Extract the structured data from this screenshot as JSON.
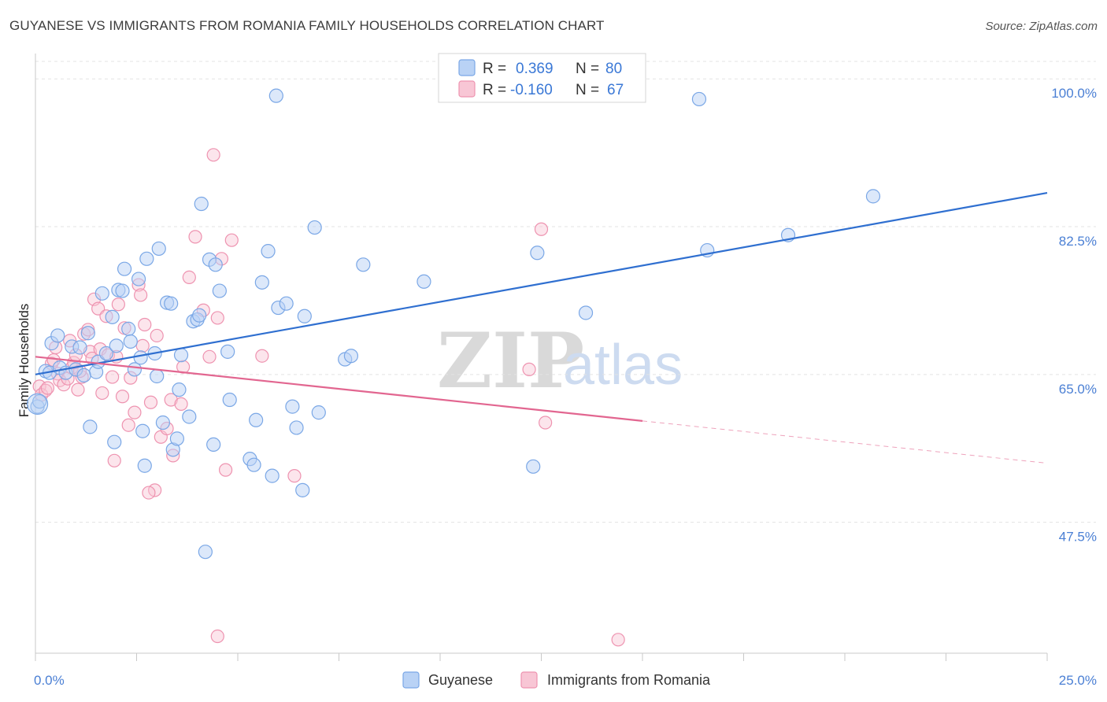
{
  "title": "GUYANESE VS IMMIGRANTS FROM ROMANIA FAMILY HOUSEHOLDS CORRELATION CHART",
  "source": "Source: ZipAtlas.com",
  "watermark": {
    "zip": "ZIP",
    "atlas": "atlas"
  },
  "legend": {
    "rows": [
      {
        "r_label": "R =",
        "r_value": "0.369",
        "n_label": "N =",
        "n_value": "80"
      },
      {
        "r_label": "R =",
        "r_value": "-0.160",
        "n_label": "N =",
        "n_value": "67"
      }
    ]
  },
  "bottom_legend": [
    "Guyanese",
    "Immigrants from Romania"
  ],
  "colors": {
    "blue_fill": "#b9d2f5",
    "blue_stroke": "#7aa7e6",
    "blue_line": "#2f6fd0",
    "pink_fill": "#f8c6d5",
    "pink_stroke": "#ee93b0",
    "pink_line": "#e26690",
    "grid": "#e3e3e3",
    "axis": "#c9c9c9",
    "tick_text": "#4a7fd4"
  },
  "chart_data": {
    "type": "scatter",
    "title": "GUYANESE VS IMMIGRANTS FROM ROMANIA FAMILY HOUSEHOLDS CORRELATION CHART",
    "xlabel": "",
    "ylabel": "Family Households",
    "xlim": [
      0,
      25
    ],
    "ylim": [
      32.0,
      103.0
    ],
    "x_tick_labels": [
      "0.0%",
      "25.0%"
    ],
    "y_ticks": [
      47.5,
      65.0,
      82.5,
      100.0
    ],
    "y_tick_labels": [
      "47.5%",
      "65.0%",
      "82.5%",
      "100.0%"
    ],
    "grid": true,
    "legend_position": "top-center",
    "series": [
      {
        "name": "Guyanese",
        "r": 0.369,
        "n": 80,
        "trend": {
          "x0": 0.0,
          "y0": 65.0,
          "x1": 25.0,
          "y1": 86.5
        },
        "points": [
          [
            0.05,
            61.2
          ],
          [
            0.1,
            61.8
          ],
          [
            0.25,
            65.4
          ],
          [
            0.35,
            65.2
          ],
          [
            0.4,
            68.7
          ],
          [
            0.55,
            69.6
          ],
          [
            0.6,
            65.8
          ],
          [
            0.75,
            65.2
          ],
          [
            0.9,
            68.3
          ],
          [
            1.0,
            65.6
          ],
          [
            1.1,
            68.2
          ],
          [
            1.3,
            69.9
          ],
          [
            1.35,
            58.8
          ],
          [
            1.5,
            65.3
          ],
          [
            1.55,
            66.5
          ],
          [
            1.65,
            74.6
          ],
          [
            1.75,
            67.5
          ],
          [
            1.9,
            71.8
          ],
          [
            1.95,
            57.0
          ],
          [
            2.05,
            75.0
          ],
          [
            2.15,
            74.9
          ],
          [
            2.2,
            77.5
          ],
          [
            2.3,
            70.4
          ],
          [
            2.35,
            68.9
          ],
          [
            2.45,
            65.6
          ],
          [
            2.55,
            76.3
          ],
          [
            2.6,
            67.0
          ],
          [
            2.65,
            58.3
          ],
          [
            2.7,
            54.2
          ],
          [
            2.75,
            78.7
          ],
          [
            2.95,
            67.5
          ],
          [
            3.0,
            64.8
          ],
          [
            3.05,
            79.9
          ],
          [
            3.15,
            59.3
          ],
          [
            3.25,
            73.5
          ],
          [
            3.35,
            73.4
          ],
          [
            3.4,
            56.1
          ],
          [
            3.5,
            57.4
          ],
          [
            3.55,
            63.2
          ],
          [
            3.6,
            67.3
          ],
          [
            3.8,
            60.0
          ],
          [
            3.9,
            71.3
          ],
          [
            4.0,
            71.5
          ],
          [
            4.05,
            72.0
          ],
          [
            4.1,
            85.2
          ],
          [
            4.2,
            44.0
          ],
          [
            4.3,
            78.6
          ],
          [
            4.4,
            56.7
          ],
          [
            4.45,
            78.0
          ],
          [
            4.55,
            74.9
          ],
          [
            4.75,
            67.7
          ],
          [
            5.3,
            55.0
          ],
          [
            5.4,
            54.3
          ],
          [
            5.45,
            59.6
          ],
          [
            5.6,
            75.9
          ],
          [
            5.75,
            79.6
          ],
          [
            5.85,
            53.0
          ],
          [
            5.95,
            98.0
          ],
          [
            6.0,
            72.9
          ],
          [
            6.2,
            73.4
          ],
          [
            6.35,
            61.2
          ],
          [
            6.45,
            58.7
          ],
          [
            6.6,
            51.3
          ],
          [
            6.65,
            71.9
          ],
          [
            6.9,
            82.4
          ],
          [
            7.65,
            66.8
          ],
          [
            7.8,
            67.2
          ],
          [
            8.1,
            78.0
          ],
          [
            9.6,
            76.0
          ],
          [
            12.3,
            54.1
          ],
          [
            12.4,
            79.4
          ],
          [
            13.6,
            72.3
          ],
          [
            16.4,
            97.6
          ],
          [
            16.6,
            79.7
          ],
          [
            18.6,
            81.5
          ],
          [
            20.7,
            86.1
          ],
          [
            1.2,
            64.9
          ],
          [
            2.0,
            68.4
          ],
          [
            4.8,
            62.0
          ],
          [
            7.0,
            60.5
          ]
        ]
      },
      {
        "name": "Immigrants from Romania",
        "r": -0.16,
        "n": 67,
        "trend": {
          "x0": 0.0,
          "y0": 67.1,
          "x1": 15.0,
          "y1": 59.5,
          "dash_x1": 25.0,
          "dash_y1": 54.5
        },
        "points": [
          [
            0.1,
            63.6
          ],
          [
            0.15,
            62.6
          ],
          [
            0.25,
            63.1
          ],
          [
            0.3,
            63.4
          ],
          [
            0.4,
            66.3
          ],
          [
            0.45,
            66.7
          ],
          [
            0.5,
            68.2
          ],
          [
            0.55,
            65.1
          ],
          [
            0.6,
            64.3
          ],
          [
            0.7,
            63.8
          ],
          [
            0.8,
            64.5
          ],
          [
            0.85,
            69.0
          ],
          [
            0.9,
            65.8
          ],
          [
            0.95,
            66.4
          ],
          [
            1.0,
            67.3
          ],
          [
            1.05,
            63.2
          ],
          [
            1.15,
            64.7
          ],
          [
            1.2,
            69.8
          ],
          [
            1.3,
            70.3
          ],
          [
            1.35,
            67.7
          ],
          [
            1.4,
            66.9
          ],
          [
            1.45,
            73.9
          ],
          [
            1.55,
            72.8
          ],
          [
            1.6,
            68.0
          ],
          [
            1.65,
            62.8
          ],
          [
            1.75,
            71.9
          ],
          [
            1.8,
            67.3
          ],
          [
            1.9,
            64.7
          ],
          [
            1.95,
            54.8
          ],
          [
            2.0,
            67.1
          ],
          [
            2.05,
            73.3
          ],
          [
            2.15,
            62.4
          ],
          [
            2.2,
            70.5
          ],
          [
            2.3,
            59.0
          ],
          [
            2.35,
            64.6
          ],
          [
            2.45,
            60.5
          ],
          [
            2.55,
            75.6
          ],
          [
            2.6,
            74.4
          ],
          [
            2.65,
            68.4
          ],
          [
            2.7,
            70.9
          ],
          [
            2.85,
            61.7
          ],
          [
            2.95,
            51.3
          ],
          [
            3.0,
            69.6
          ],
          [
            3.1,
            57.6
          ],
          [
            3.25,
            58.6
          ],
          [
            3.35,
            62.0
          ],
          [
            3.4,
            55.4
          ],
          [
            3.6,
            61.5
          ],
          [
            3.65,
            65.9
          ],
          [
            3.8,
            76.5
          ],
          [
            3.95,
            81.3
          ],
          [
            4.15,
            72.6
          ],
          [
            4.3,
            67.1
          ],
          [
            4.5,
            71.7
          ],
          [
            4.6,
            78.7
          ],
          [
            4.7,
            53.7
          ],
          [
            4.85,
            80.9
          ],
          [
            5.6,
            67.2
          ],
          [
            6.4,
            53.0
          ],
          [
            12.2,
            65.6
          ],
          [
            12.5,
            82.2
          ],
          [
            12.6,
            59.3
          ],
          [
            14.4,
            33.6
          ],
          [
            4.4,
            91.0
          ],
          [
            4.5,
            34.0
          ],
          [
            2.8,
            51.0
          ],
          [
            1.1,
            65.4
          ]
        ]
      }
    ]
  }
}
